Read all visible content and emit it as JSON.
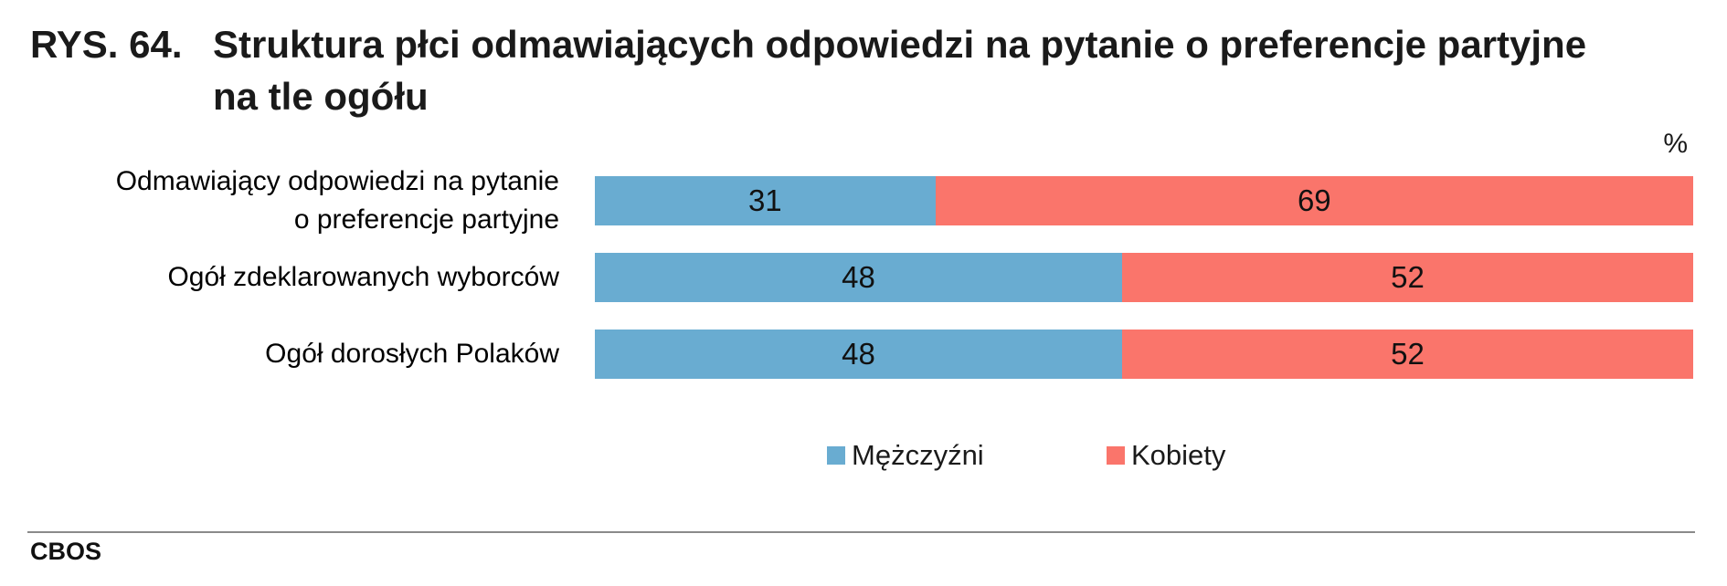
{
  "title": {
    "prefix": "RYS. 64.",
    "line1": "Struktura płci odmawiających odpowiedzi na pytanie o preferencje partyjne",
    "line2": "na tle ogółu"
  },
  "axis": {
    "unit_label": "%"
  },
  "footer": {
    "brand": "CBOS",
    "divider_color": "#8a8a8a"
  },
  "chart_data": {
    "type": "bar",
    "orientation": "horizontal",
    "stacked": true,
    "unit": "%",
    "xlim": [
      0,
      100
    ],
    "grid": false,
    "legend_position": "bottom",
    "title": "RYS. 64. Struktura płci odmawiających odpowiedzi na pytanie o preferencje partyjne na tle ogółu",
    "categories": [
      "Odmawiający odpowiedzi na pytanie o preferencje partyjne",
      "Ogół zdeklarowanych wyborców",
      "Ogół dorosłych Polaków"
    ],
    "category_lines": [
      [
        "Odmawiający odpowiedzi na pytanie",
        "o preferencje partyjne"
      ],
      [
        "Ogół zdeklarowanych wyborców"
      ],
      [
        "Ogół dorosłych Polaków"
      ]
    ],
    "series": [
      {
        "name": "Mężczyźni",
        "color": "#69acd1",
        "values": [
          31,
          48,
          48
        ]
      },
      {
        "name": "Kobiety",
        "color": "#fa756b",
        "values": [
          69,
          52,
          52
        ]
      }
    ]
  }
}
